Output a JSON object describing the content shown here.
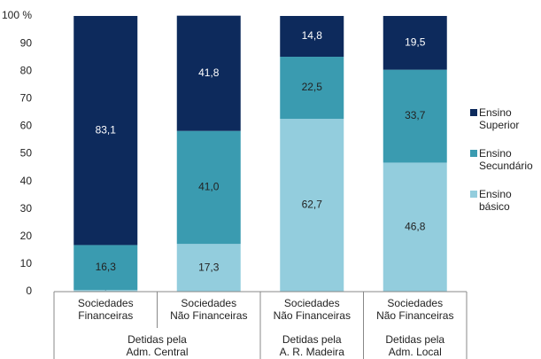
{
  "chart_data": {
    "type": "stacked_bar",
    "categories": [
      "Sociedades\nFinanceiras",
      "Sociedades\nNão Financeiras",
      "Sociedades\nNão Financeiras",
      "Sociedades\nNão Financeiras"
    ],
    "groups": [
      {
        "label": "Detidas pela\nAdm. Central",
        "span": 2
      },
      {
        "label": "Detidas pela\nA. R. Madeira",
        "span": 1
      },
      {
        "label": "Detidas pela\nAdm. Local",
        "span": 1
      }
    ],
    "series": [
      {
        "name": "Ensino\nbásico",
        "color": "#93cddd",
        "values": [
          0.6,
          17.3,
          62.7,
          46.8
        ],
        "value_labels": [
          "0,6",
          "17,3",
          "62,7",
          "46,8"
        ]
      },
      {
        "name": "Ensino\nSecundário",
        "color": "#3a9bb0",
        "values": [
          16.3,
          41.0,
          22.5,
          33.7
        ],
        "value_labels": [
          "16,3",
          "41,0",
          "22,5",
          "33,7"
        ]
      },
      {
        "name": "Ensino\nSuperior",
        "color": "#0d2a5c",
        "values": [
          83.1,
          41.8,
          14.8,
          19.5
        ],
        "value_labels": [
          "83,1",
          "41,8",
          "14,8",
          "19,5"
        ]
      }
    ],
    "ylim": [
      0,
      100
    ],
    "yticks": [
      0,
      10,
      20,
      30,
      40,
      50,
      60,
      70,
      80,
      90,
      {
        "value": 100,
        "label": "100 %"
      }
    ],
    "grid": false,
    "legend": "right"
  }
}
